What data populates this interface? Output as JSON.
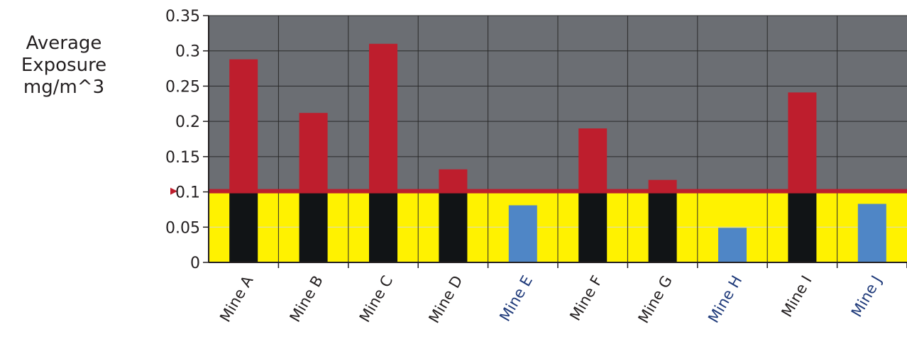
{
  "chart_data": {
    "type": "bar",
    "ylabel_lines": [
      "Average",
      "Exposure",
      "mg/m^3"
    ],
    "ylim": [
      0,
      0.35
    ],
    "yticks": [
      {
        "value": 0,
        "label": "0"
      },
      {
        "value": 0.05,
        "label": "0.05"
      },
      {
        "value": 0.1,
        "label": "0.1"
      },
      {
        "value": 0.15,
        "label": "0.15"
      },
      {
        "value": 0.2,
        "label": "0.2"
      },
      {
        "value": 0.25,
        "label": "0.25"
      },
      {
        "value": 0.3,
        "label": "0.3"
      },
      {
        "value": 0.35,
        "label": "0.35"
      }
    ],
    "threshold": 0.1,
    "grid": true,
    "categories": [
      "Mine A",
      "Mine B",
      "Mine C",
      "Mine D",
      "Mine E",
      "Mine F",
      "Mine G",
      "Mine H",
      "Mine I",
      "Mine J"
    ],
    "values": [
      0.288,
      0.212,
      0.31,
      0.132,
      0.081,
      0.19,
      0.117,
      0.049,
      0.241,
      0.083
    ],
    "colors": {
      "plot_background_above": "#6b6e73",
      "plot_background_below": "#fff200",
      "threshold_line": "#be1e2d",
      "bar_above_threshold": "#be1e2d",
      "bar_below_threshold_part": "#111416",
      "bar_under_threshold": "#4f86c6",
      "label_normal": "#231f20",
      "label_under_threshold": "#1f3a7a",
      "grid_line": "#2a2a2a",
      "axis_line": "#231f20",
      "minor_gridline_yellow": "#d8d8c8"
    }
  }
}
